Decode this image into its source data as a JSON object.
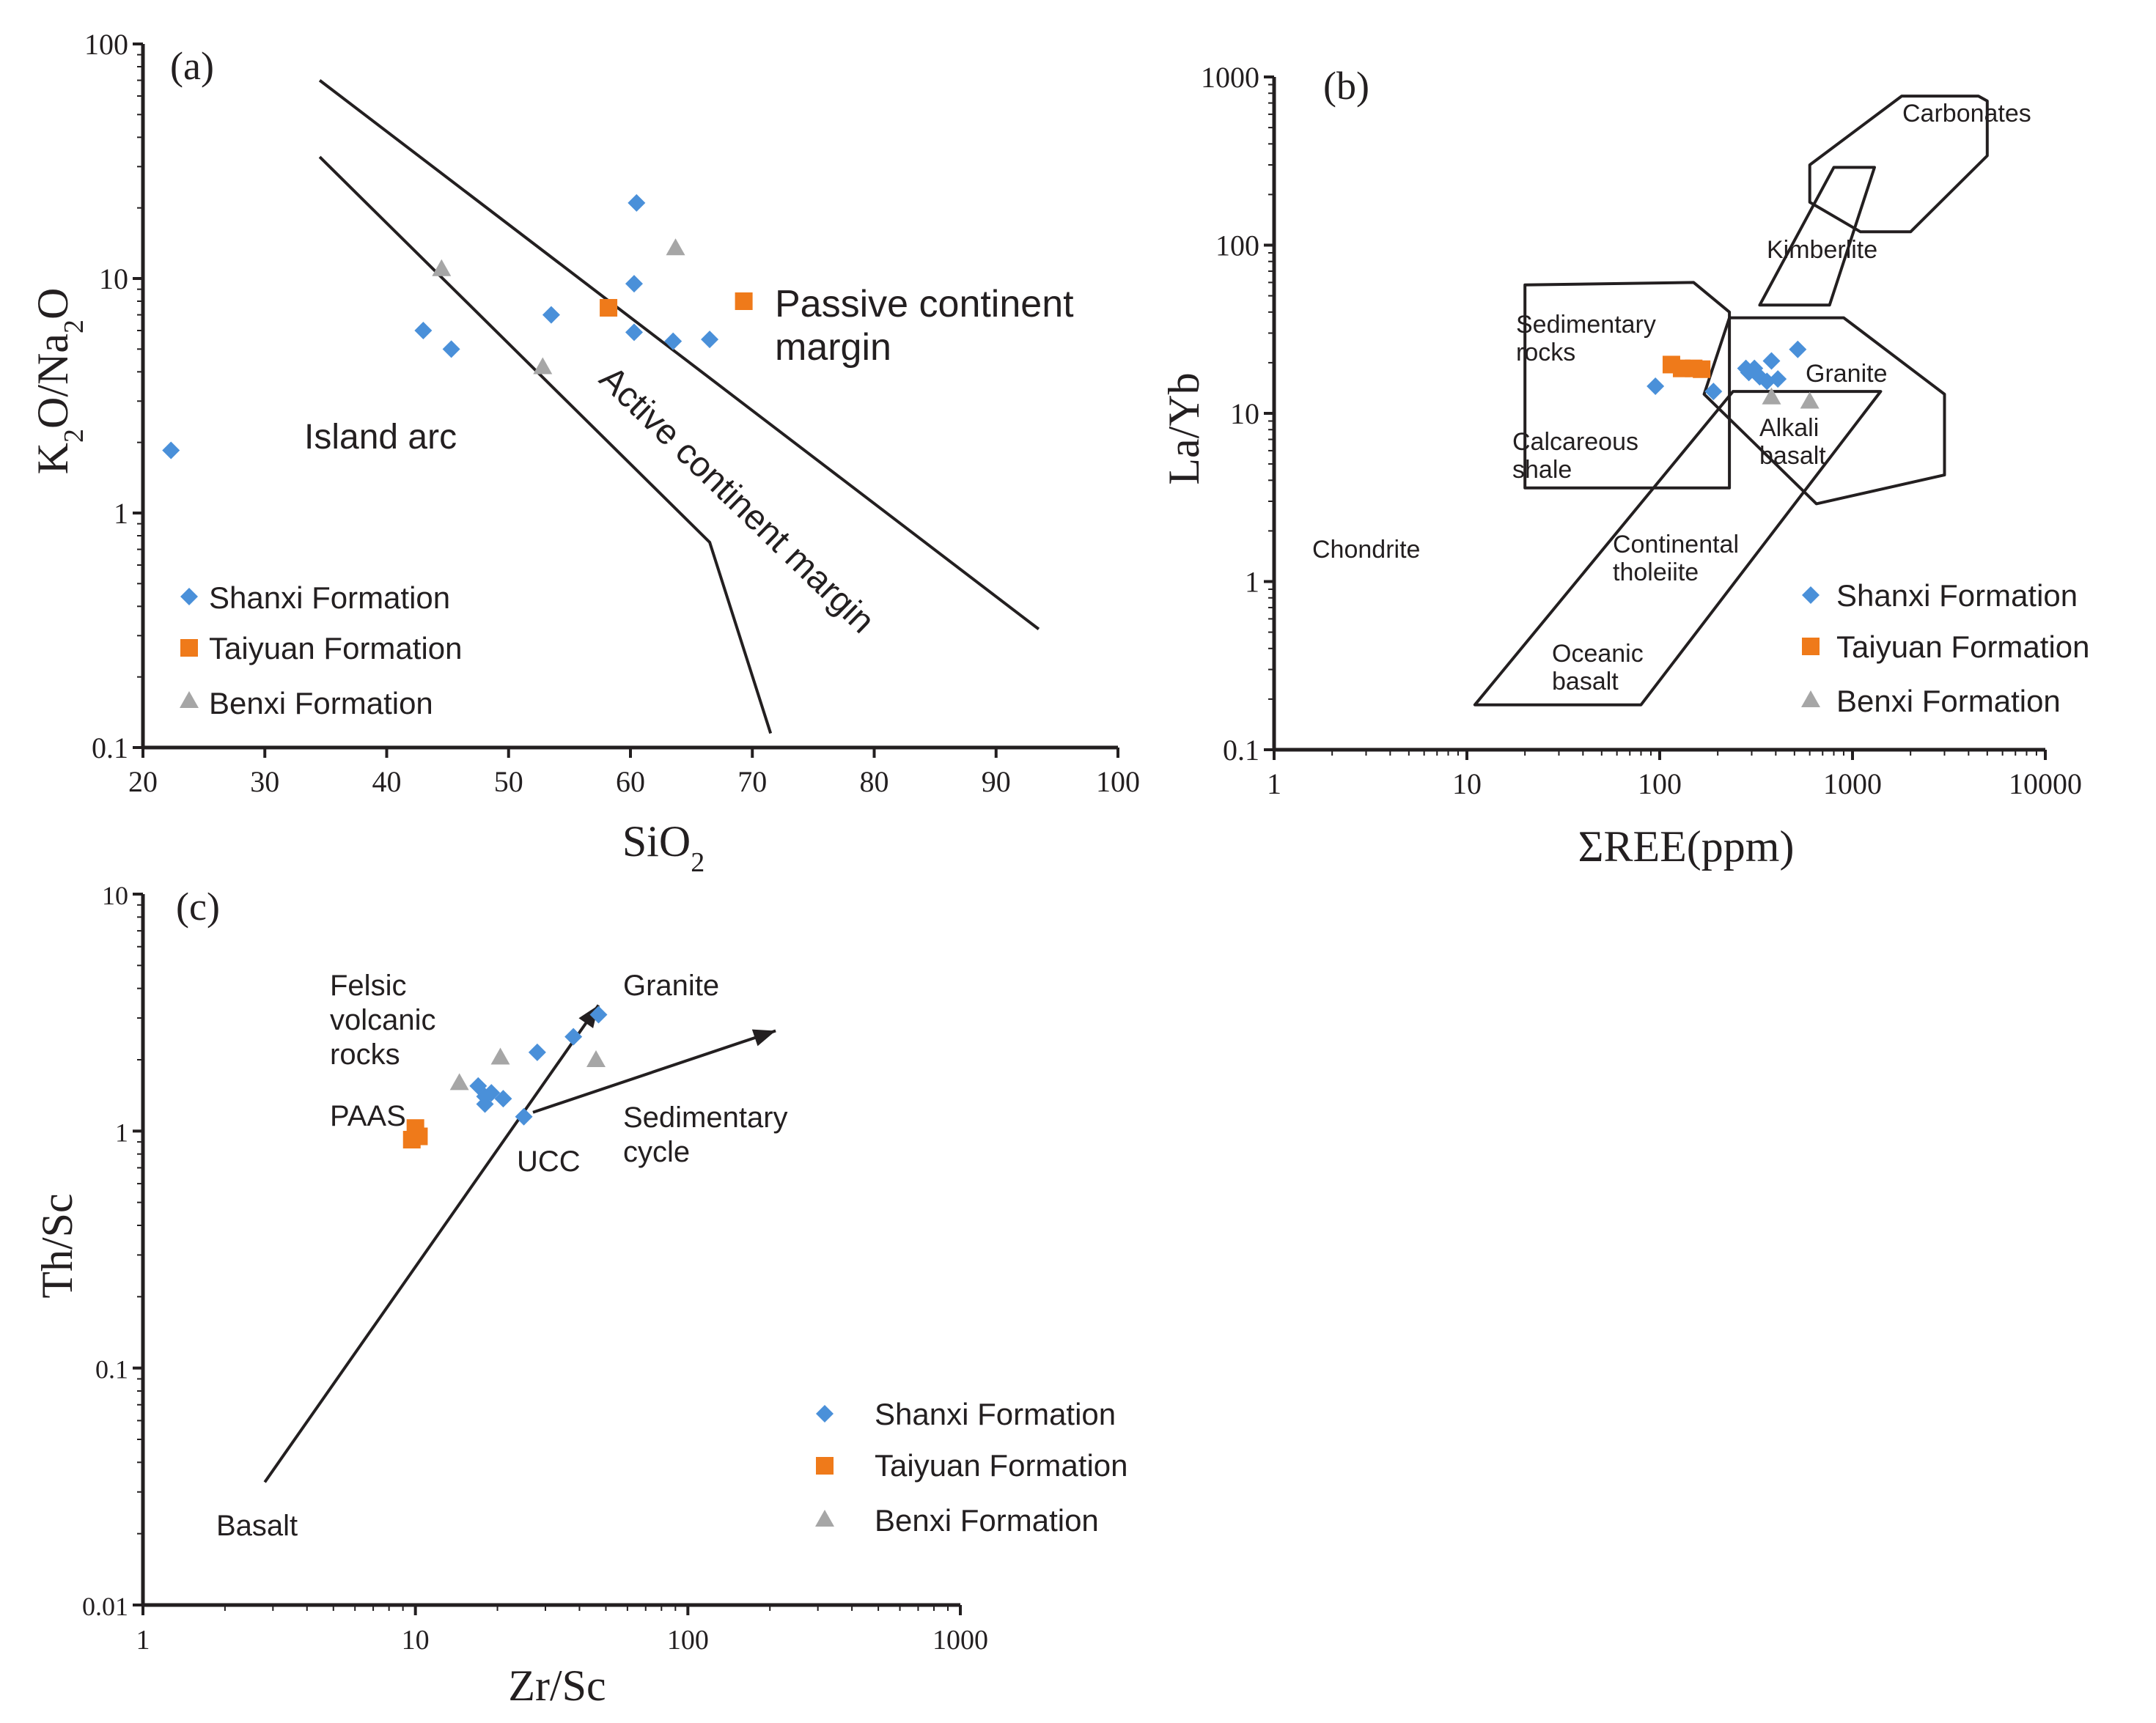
{
  "colors": {
    "shanxi": "#4a90d9",
    "taiyuan": "#ef7a1a",
    "benxi": "#a6a6a6",
    "ink": "#231f20"
  },
  "legend": {
    "shanxi": "Shanxi Formation",
    "taiyuan": "Taiyuan Formation",
    "benxi": "Benxi Formation"
  },
  "chart_data": [
    {
      "panel": "(a)",
      "type": "scatter",
      "xlabel": "SiO",
      "xlabel_sub": "2",
      "ylabel_parts": [
        "K",
        "2",
        "O/Na",
        "2",
        "O"
      ],
      "xscale": "linear",
      "yscale": "log",
      "xlim": [
        20,
        100
      ],
      "ylim": [
        0.1,
        100
      ],
      "xticks": [
        "20",
        "30",
        "40",
        "50",
        "60",
        "70",
        "80",
        "90",
        "100"
      ],
      "yticks": [
        "0.1",
        "1",
        "10",
        "100"
      ],
      "region_labels": {
        "island_arc": "Island arc",
        "active_margin": "Active continent margin",
        "passive_1": "Passive continent",
        "passive_2": "margin"
      },
      "boundaries": [
        {
          "name": "upper",
          "points": [
            [
              34.5,
              70
            ],
            [
              93.5,
              0.32
            ]
          ]
        },
        {
          "name": "lower",
          "points": [
            [
              34.5,
              33
            ],
            [
              66.5,
              0.75
            ],
            [
              71.5,
              0.115
            ]
          ]
        }
      ],
      "series": [
        {
          "name": "Shanxi Formation",
          "marker": "diamond",
          "points": [
            [
              22.3,
              1.85
            ],
            [
              43,
              6
            ],
            [
              45.3,
              5
            ],
            [
              53.5,
              7
            ],
            [
              60.3,
              9.5
            ],
            [
              60.5,
              21
            ],
            [
              60.3,
              5.9
            ],
            [
              63.5,
              5.4
            ],
            [
              66.5,
              5.5
            ]
          ]
        },
        {
          "name": "Taiyuan Formation",
          "marker": "square",
          "points": [
            [
              58.2,
              7.5
            ],
            [
              69.3,
              8
            ]
          ]
        },
        {
          "name": "Benxi Formation",
          "marker": "triangle",
          "points": [
            [
              44.5,
              11
            ],
            [
              52.8,
              4.2
            ],
            [
              63.7,
              13.5
            ]
          ]
        }
      ]
    },
    {
      "panel": "(b)",
      "type": "scatter",
      "xlabel": "ΣREE(ppm)",
      "ylabel": "La/Yb",
      "xscale": "log",
      "yscale": "log",
      "xlim": [
        1,
        10000
      ],
      "ylim": [
        0.1,
        1000
      ],
      "xticks": [
        "1",
        "10",
        "100",
        "1000",
        "10000"
      ],
      "yticks": [
        "0.1",
        "1",
        "10",
        "100",
        "1000"
      ],
      "region_labels": {
        "carbonates": "Carbonates",
        "kimberlite": "Kimberlite",
        "sed_1": "Sedimentary",
        "sed_2": "rocks",
        "calc_1": "Calcareous",
        "calc_2": "shale",
        "granite": "Granite",
        "alkali_1": "Alkali",
        "alkali_2": "basalt",
        "chondrite": "Chondrite",
        "cont_1": "Continental",
        "cont_2": "tholeiite",
        "ocean_1": "Oceanic",
        "ocean_2": "basalt"
      },
      "fields": [
        {
          "name": "Carbonates",
          "points": [
            [
              600,
              300
            ],
            [
              1800,
              770
            ],
            [
              4500,
              770
            ],
            [
              5000,
              720
            ],
            [
              5000,
              340
            ],
            [
              2000,
              120
            ],
            [
              1100,
              120
            ],
            [
              600,
              180
            ]
          ]
        },
        {
          "name": "Kimberlite",
          "points": [
            [
              330,
              44
            ],
            [
              800,
              290
            ],
            [
              1300,
              290
            ],
            [
              760,
              44
            ]
          ]
        },
        {
          "name": "Sedimentary rocks / Calcareous shale",
          "points": [
            [
              20,
              58
            ],
            [
              150,
              60
            ],
            [
              230,
              40
            ],
            [
              230,
              3.6
            ],
            [
              20,
              3.6
            ]
          ]
        },
        {
          "name": "Granite / Alkali basalt",
          "points": [
            [
              230,
              37
            ],
            [
              900,
              37
            ],
            [
              3000,
              13
            ],
            [
              3000,
              4.3
            ],
            [
              650,
              2.9
            ],
            [
              170,
              13
            ]
          ]
        },
        {
          "name": "Continental tholeiite / Oceanic basalt",
          "points": [
            [
              11,
              0.185
            ],
            [
              80,
              0.185
            ],
            [
              1400,
              13.5
            ],
            [
              240,
              13.5
            ]
          ]
        }
      ],
      "series": [
        {
          "name": "Shanxi Formation",
          "marker": "diamond",
          "points": [
            [
              95,
              14.5
            ],
            [
              190,
              13.5
            ],
            [
              280,
              18.5
            ],
            [
              290,
              17.5
            ],
            [
              310,
              18.5
            ],
            [
              330,
              16.5
            ],
            [
              360,
              15.5
            ],
            [
              380,
              20.5
            ],
            [
              410,
              16
            ],
            [
              520,
              24
            ]
          ]
        },
        {
          "name": "Taiyuan Formation",
          "marker": "square",
          "points": [
            [
              115,
              19.5
            ],
            [
              130,
              18.5
            ],
            [
              150,
              18.5
            ],
            [
              165,
              18.3
            ]
          ]
        },
        {
          "name": "Benxi Formation",
          "marker": "triangle",
          "points": [
            [
              380,
              12.5
            ],
            [
              600,
              11.8
            ]
          ]
        }
      ]
    },
    {
      "panel": "(c)",
      "type": "scatter",
      "xlabel": "Zr/Sc",
      "ylabel": "Th/Sc",
      "xscale": "log",
      "yscale": "log",
      "xlim": [
        1,
        1000
      ],
      "ylim": [
        0.01,
        10
      ],
      "xticks": [
        "1",
        "10",
        "100",
        "1000"
      ],
      "yticks": [
        "0.01",
        "0.1",
        "1",
        "10"
      ],
      "region_labels": {
        "felsic_1": "Felsic",
        "felsic_2": "volcanic",
        "felsic_3": "rocks",
        "granite": "Granite",
        "paas": "PAAS",
        "ucc": "UCC",
        "sed_1": "Sedimentary",
        "sed_2": "cycle",
        "basalt": "Basalt"
      },
      "arrows": [
        {
          "name": "igneous trend",
          "from": [
            2.8,
            0.033
          ],
          "to": [
            47,
            3.4
          ]
        },
        {
          "name": "sedimentary cycle",
          "from": [
            27,
            1.2
          ],
          "to": [
            210,
            2.65
          ]
        }
      ],
      "series": [
        {
          "name": "Shanxi Formation",
          "marker": "diamond",
          "points": [
            [
              17,
              1.55
            ],
            [
              18,
              1.4
            ],
            [
              18,
              1.3
            ],
            [
              19,
              1.45
            ],
            [
              21,
              1.37
            ],
            [
              25,
              1.15
            ],
            [
              28,
              2.15
            ],
            [
              38,
              2.5
            ],
            [
              47,
              3.1
            ]
          ]
        },
        {
          "name": "Taiyuan Formation",
          "marker": "square",
          "points": [
            [
              10,
              1.03
            ],
            [
              10.3,
              0.95
            ],
            [
              9.7,
              0.92
            ]
          ]
        },
        {
          "name": "Benxi Formation",
          "marker": "triangle",
          "points": [
            [
              14.5,
              1.6
            ],
            [
              20.5,
              2.05
            ],
            [
              46,
              2.0
            ]
          ]
        }
      ]
    }
  ]
}
